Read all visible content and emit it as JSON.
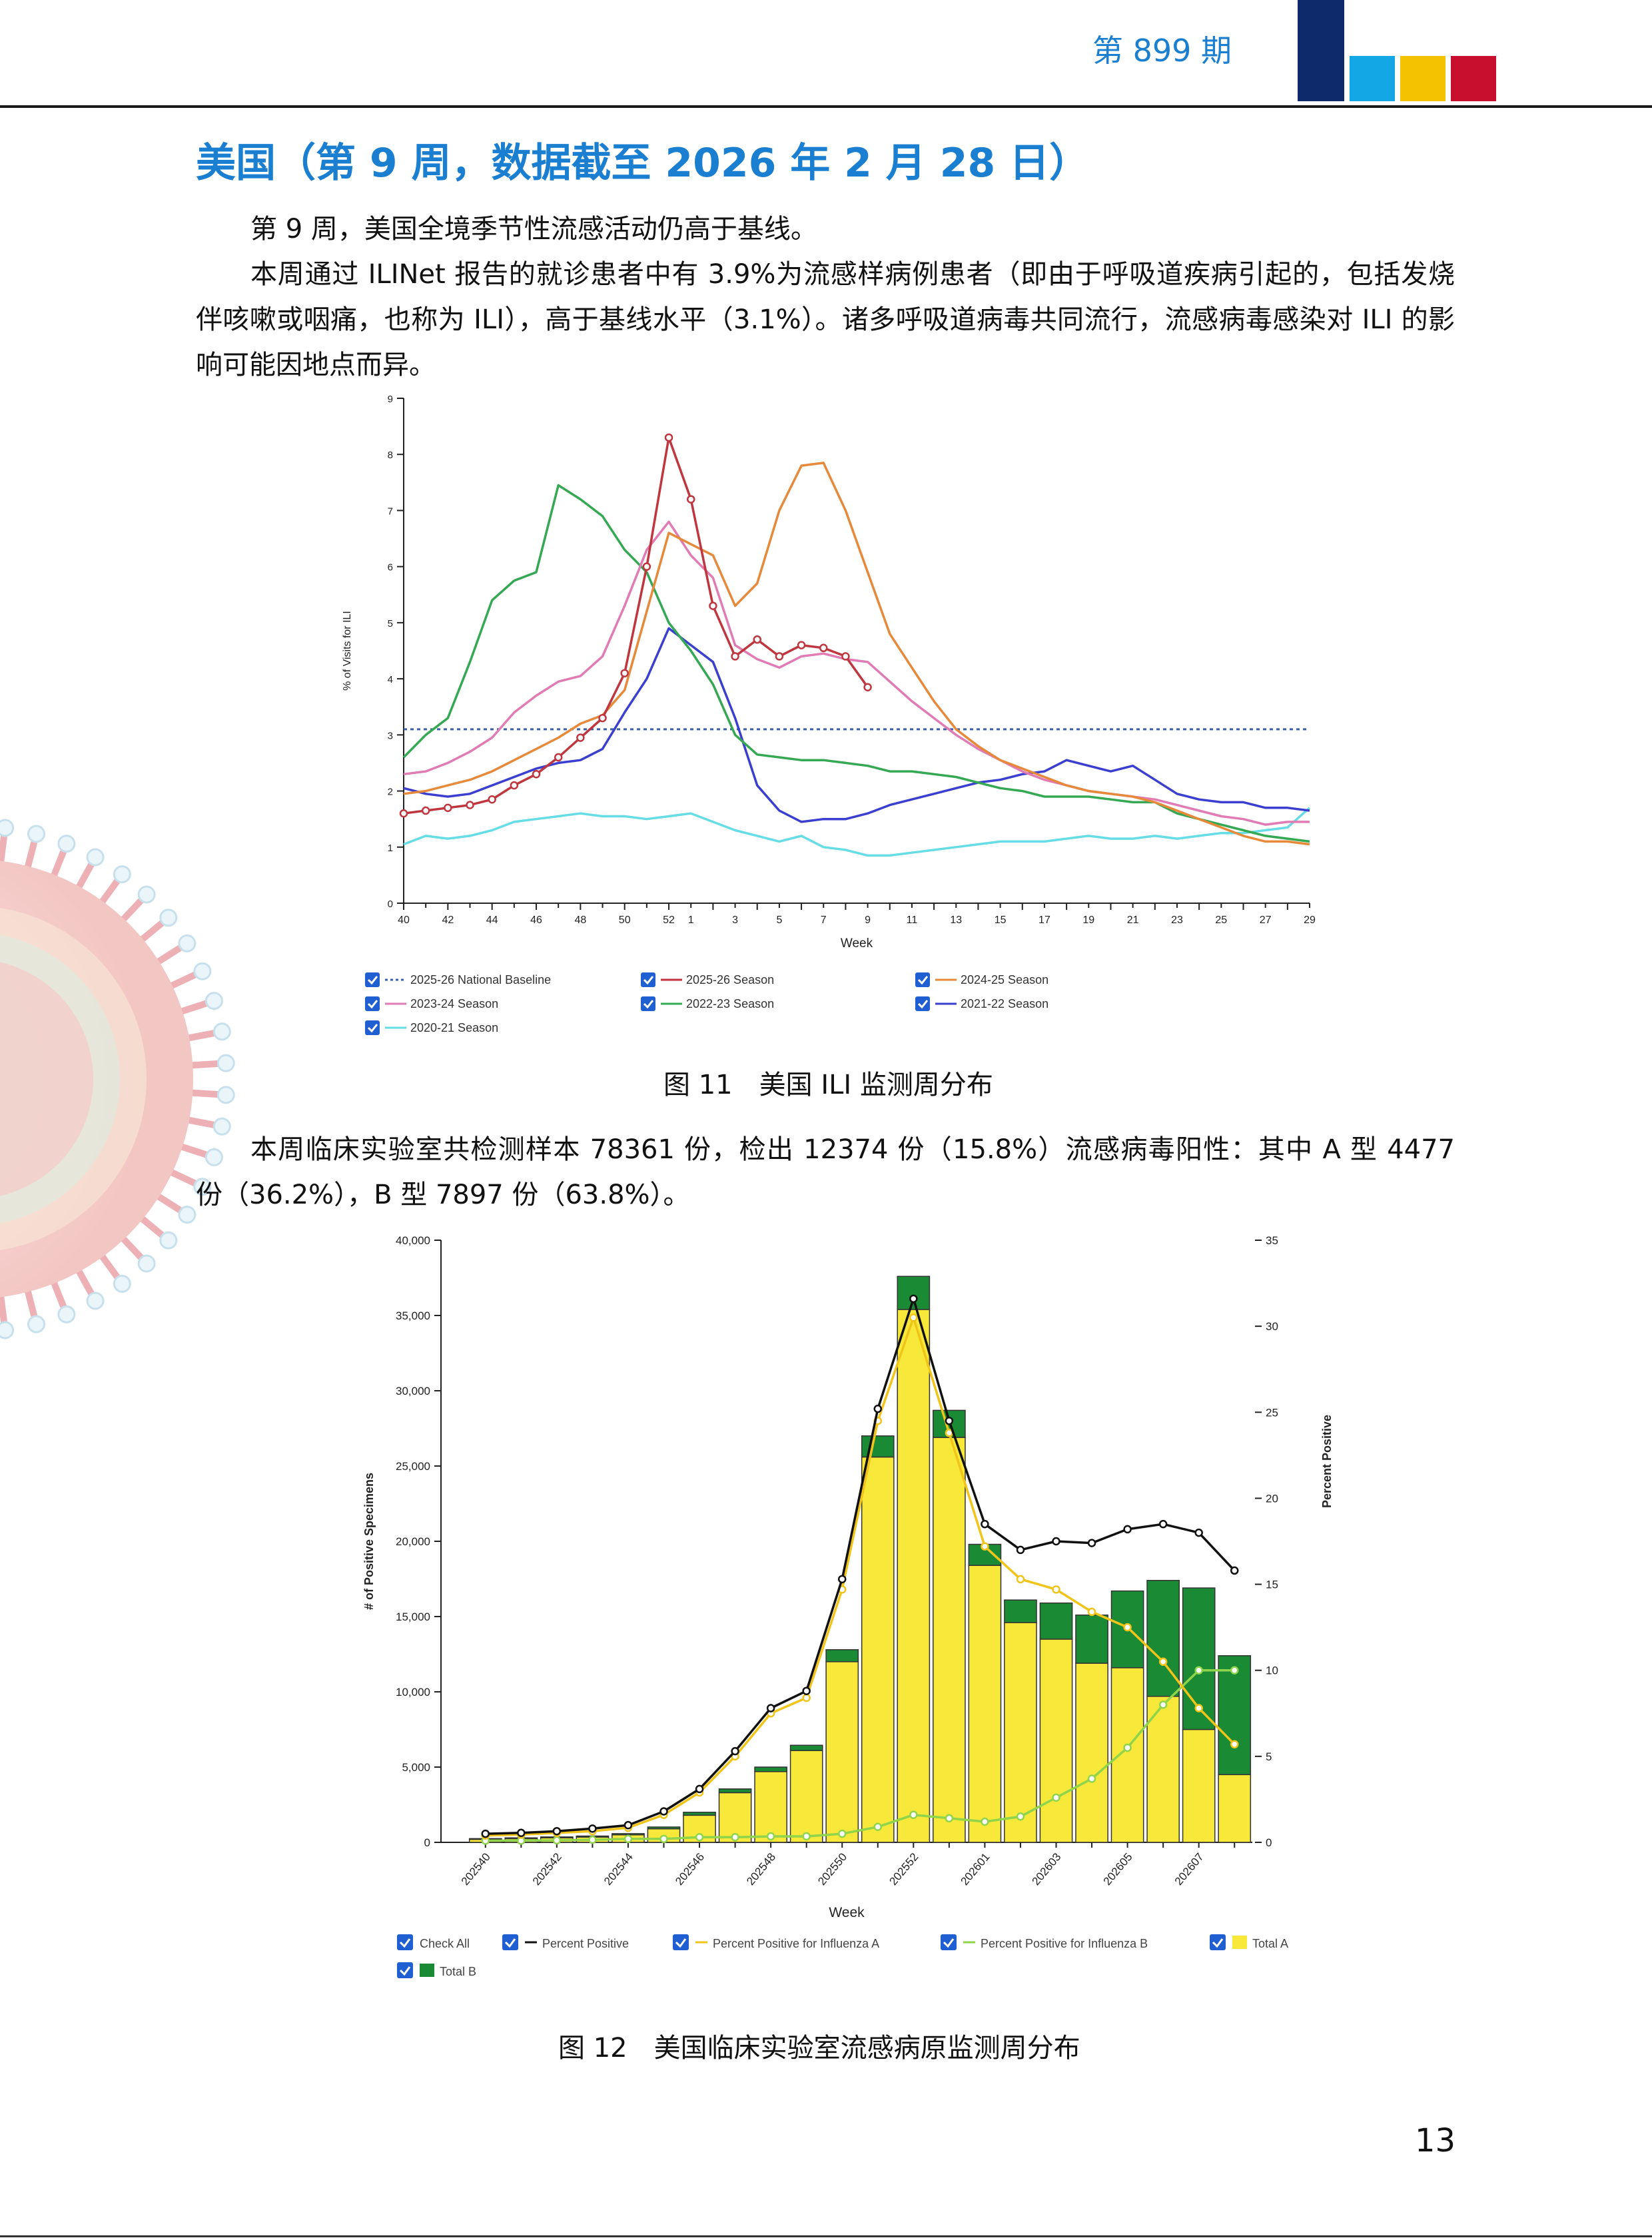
{
  "header": {
    "issue": "第 899 期",
    "colors": [
      "#0e2a6b",
      "#14a7e6",
      "#f5c200",
      "#c8102e"
    ]
  },
  "title": "美国（第 9 周，数据截至 2026 年 2 月 28 日）",
  "paragraphs": {
    "p1": "第 9 周，美国全境季节性流感活动仍高于基线。",
    "p2": "本周通过 ILINet 报告的就诊患者中有 3.9%为流感样病例患者（即由于呼吸道疾病引起的，包括发烧伴咳嗽或咽痛，也称为 ILI），高于基线水平（3.1%）。诸多呼吸道病毒共同流行，流感病毒感染对 ILI 的影响可能因地点而异。",
    "p3": "本周临床实验室共检测样本 78361 份，检出 12374 份（15.8%）流感病毒阳性：其中 A 型 4477 份（36.2%），B 型 7897 份（63.8%）。"
  },
  "captions": {
    "fig11": "图 11　美国 ILI 监测周分布",
    "fig12": "图 12　美国临床实验室流感病原监测周分布"
  },
  "page_number": "13",
  "chart_data": [
    {
      "type": "line",
      "xlabel": "Week",
      "ylabel": "% of Visits for ILI",
      "ylim": [
        0,
        9
      ],
      "yticks": [
        "0",
        "1",
        "2",
        "3",
        "4",
        "5",
        "6",
        "7",
        "8",
        "9"
      ],
      "xticks": [
        "40",
        "42",
        "44",
        "46",
        "48",
        "50",
        "52",
        "1",
        "3",
        "5",
        "7",
        "9",
        "11",
        "13",
        "15",
        "17",
        "19",
        "21",
        "23",
        "25",
        "27",
        "29"
      ],
      "weeks": [
        40,
        41,
        42,
        43,
        44,
        45,
        46,
        47,
        48,
        49,
        50,
        51,
        52,
        1,
        2,
        3,
        4,
        5,
        6,
        7,
        8,
        9,
        10,
        11,
        12,
        13,
        14,
        15,
        16,
        17,
        18,
        19,
        20,
        21,
        22,
        23,
        24,
        25,
        26,
        27,
        28,
        29
      ],
      "baseline": {
        "name": "2025-26 National Baseline",
        "value": 3.1,
        "color": "#3a5fa8"
      },
      "series": [
        {
          "name": "2025-26 Season",
          "color": "#c0363e",
          "markers": true,
          "values": [
            1.6,
            1.65,
            1.7,
            1.75,
            1.85,
            2.1,
            2.3,
            2.6,
            2.95,
            3.3,
            4.1,
            6.0,
            8.3,
            7.2,
            5.3,
            4.4,
            4.7,
            4.4,
            4.6,
            4.55,
            4.4,
            3.85
          ]
        },
        {
          "name": "2024-25 Season",
          "color": "#e6893a",
          "values": [
            1.95,
            2.0,
            2.1,
            2.2,
            2.35,
            2.55,
            2.75,
            2.95,
            3.2,
            3.35,
            3.8,
            5.2,
            6.6,
            6.4,
            6.2,
            5.3,
            5.7,
            7.0,
            7.8,
            7.85,
            7.0,
            5.9,
            4.8,
            4.2,
            3.6,
            3.1,
            2.8,
            2.55,
            2.4,
            2.25,
            2.1,
            2.0,
            1.95,
            1.9,
            1.8,
            1.65,
            1.5,
            1.35,
            1.2,
            1.1,
            1.1,
            1.05
          ]
        },
        {
          "name": "2023-24 Season",
          "color": "#e07bb4",
          "values": [
            2.3,
            2.35,
            2.5,
            2.7,
            2.95,
            3.4,
            3.7,
            3.95,
            4.05,
            4.4,
            5.3,
            6.3,
            6.8,
            6.2,
            5.8,
            4.6,
            4.35,
            4.2,
            4.4,
            4.45,
            4.35,
            4.3,
            3.95,
            3.6,
            3.3,
            3.0,
            2.75,
            2.55,
            2.35,
            2.2,
            2.1,
            2.0,
            1.95,
            1.9,
            1.85,
            1.75,
            1.65,
            1.55,
            1.5,
            1.4,
            1.45,
            1.45
          ]
        },
        {
          "name": "2022-23 Season",
          "color": "#35a853",
          "values": [
            2.6,
            3.0,
            3.3,
            4.3,
            5.4,
            5.75,
            5.9,
            7.45,
            7.2,
            6.9,
            6.3,
            5.9,
            5.0,
            4.5,
            3.9,
            3.0,
            2.65,
            2.6,
            2.55,
            2.55,
            2.5,
            2.45,
            2.35,
            2.35,
            2.3,
            2.25,
            2.15,
            2.05,
            2.0,
            1.9,
            1.9,
            1.9,
            1.85,
            1.8,
            1.8,
            1.6,
            1.5,
            1.4,
            1.3,
            1.2,
            1.15,
            1.1
          ]
        },
        {
          "name": "2021-22 Season",
          "color": "#3b3fcf",
          "values": [
            2.05,
            1.95,
            1.9,
            1.95,
            2.1,
            2.25,
            2.4,
            2.5,
            2.55,
            2.75,
            3.4,
            4.0,
            4.9,
            4.6,
            4.3,
            3.3,
            2.1,
            1.65,
            1.45,
            1.5,
            1.5,
            1.6,
            1.75,
            1.85,
            1.95,
            2.05,
            2.15,
            2.2,
            2.3,
            2.35,
            2.55,
            2.45,
            2.35,
            2.45,
            2.2,
            1.95,
            1.85,
            1.8,
            1.8,
            1.7,
            1.7,
            1.65
          ]
        },
        {
          "name": "2020-21 Season",
          "color": "#66dde6",
          "values": [
            1.05,
            1.2,
            1.15,
            1.2,
            1.3,
            1.45,
            1.5,
            1.55,
            1.6,
            1.55,
            1.55,
            1.5,
            1.55,
            1.6,
            1.45,
            1.3,
            1.2,
            1.1,
            1.2,
            1.0,
            0.95,
            0.85,
            0.85,
            0.9,
            0.95,
            1.0,
            1.05,
            1.1,
            1.1,
            1.1,
            1.15,
            1.2,
            1.15,
            1.15,
            1.2,
            1.15,
            1.2,
            1.25,
            1.25,
            1.3,
            1.35,
            1.7
          ]
        }
      ],
      "legend": [
        "2025-26 National Baseline",
        "2025-26 Season",
        "2024-25 Season",
        "2023-24 Season",
        "2022-23 Season",
        "2021-22 Season",
        "2020-21 Season"
      ]
    },
    {
      "type": "bar",
      "xlabel": "Week",
      "ylabel": "# of Positive Specimens",
      "ylabel_right": "Percent Positive",
      "ylim": [
        0,
        40000
      ],
      "ylim_right": [
        0,
        35
      ],
      "yticks": [
        "0",
        "5,000",
        "10,000",
        "15,000",
        "20,000",
        "25,000",
        "30,000",
        "35,000",
        "40,000"
      ],
      "yticks_right": [
        "0",
        "5",
        "10",
        "15",
        "20",
        "25",
        "30",
        "35"
      ],
      "categories": [
        "202540",
        "202541",
        "202542",
        "202543",
        "202544",
        "202545",
        "202546",
        "202547",
        "202548",
        "202549",
        "202550",
        "202551",
        "202552",
        "202553",
        "202601",
        "202602",
        "202603",
        "202604",
        "202605",
        "202606",
        "202607",
        "202608"
      ],
      "xticks": [
        "202540",
        "202542",
        "202544",
        "202546",
        "202548",
        "202550",
        "202552",
        "202601",
        "202603",
        "202605",
        "202607"
      ],
      "total_a": [
        200,
        250,
        300,
        350,
        500,
        900,
        1800,
        3300,
        4700,
        6100,
        12000,
        25600,
        35400,
        26900,
        18400,
        14600,
        13500,
        11900,
        11600,
        9700,
        7500,
        4500
      ],
      "total_b": [
        50,
        50,
        60,
        70,
        80,
        120,
        200,
        250,
        300,
        350,
        800,
        1400,
        2200,
        1800,
        1400,
        1500,
        2400,
        3200,
        5100,
        7700,
        9400,
        7900
      ],
      "pct_positive": [
        0.5,
        0.55,
        0.65,
        0.8,
        1.0,
        1.8,
        3.1,
        5.3,
        7.8,
        8.8,
        15.3,
        25.2,
        31.6,
        24.5,
        18.5,
        17.0,
        17.5,
        17.4,
        18.2,
        18.5,
        18.0,
        15.8
      ],
      "pct_positive_a": [
        0.4,
        0.45,
        0.55,
        0.65,
        0.85,
        1.6,
        2.9,
        5.0,
        7.5,
        8.4,
        14.7,
        24.5,
        30.5,
        23.8,
        17.2,
        15.3,
        14.7,
        13.4,
        12.5,
        10.5,
        7.8,
        5.7
      ],
      "pct_positive_b": [
        0.1,
        0.1,
        0.12,
        0.15,
        0.2,
        0.2,
        0.3,
        0.3,
        0.35,
        0.35,
        0.5,
        0.9,
        1.6,
        1.4,
        1.2,
        1.5,
        2.6,
        3.7,
        5.5,
        8.0,
        10.0,
        10.0
      ],
      "colors": {
        "pct": "#111111",
        "pct_a": "#f0c419",
        "pct_b": "#8fd44a",
        "total_a": "#f7e83a",
        "total_b": "#1b8a34"
      },
      "legend": [
        "Check All",
        "Percent Positive",
        "Percent Positive for Influenza A",
        "Percent Positive for Influenza B",
        "Total A",
        "Total B"
      ]
    }
  ]
}
